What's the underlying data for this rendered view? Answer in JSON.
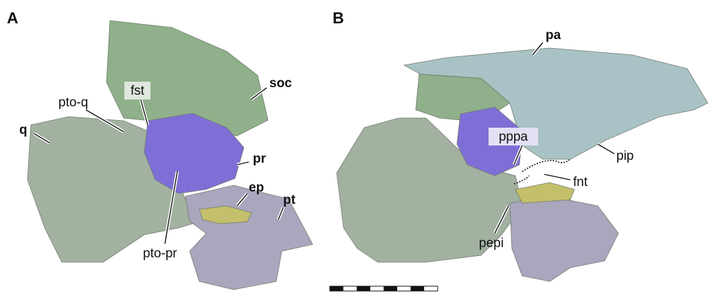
{
  "panels": [
    {
      "letter": "A",
      "labels": [
        "q",
        "pto-q",
        "fst",
        "soc",
        "pr",
        "ep",
        "pt",
        "pto-pr"
      ]
    },
    {
      "letter": "B",
      "labels": [
        "pa",
        "pppa",
        "pip",
        "fnt",
        "pepi"
      ]
    }
  ]
}
